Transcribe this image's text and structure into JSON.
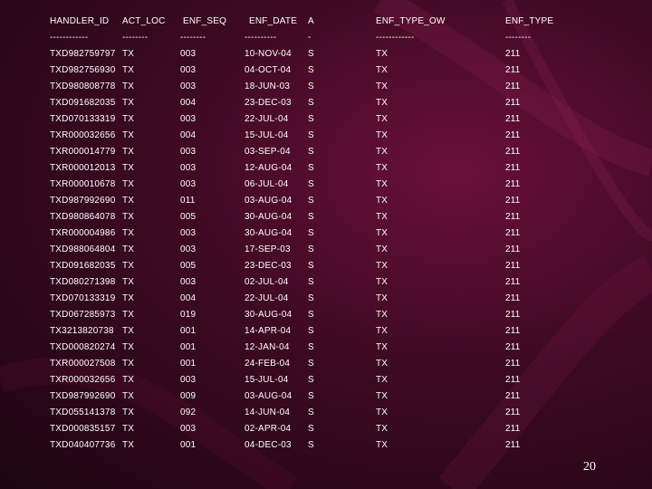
{
  "table": {
    "headers": [
      "HANDLER_ID",
      "ACT_LOC",
      "ENF_SEQ",
      "ENF_DATE",
      "A",
      "ENF_TYPE_OW",
      "ENF_TYPE"
    ],
    "separators": [
      "------------",
      "--------",
      "--------",
      "----------",
      "-",
      "------------",
      "--------"
    ],
    "rows": [
      [
        "TXD982759797",
        "TX",
        "003",
        "10-NOV-04",
        "S",
        "TX",
        "211"
      ],
      [
        "TXD982756930",
        "TX",
        "003",
        "04-OCT-04",
        "S",
        "TX",
        "211"
      ],
      [
        "TXD980808778",
        "TX",
        "003",
        "18-JUN-03",
        "S",
        "TX",
        "211"
      ],
      [
        "TXD091682035",
        "TX",
        "004",
        "23-DEC-03",
        "S",
        "TX",
        "211"
      ],
      [
        "TXD070133319",
        "TX",
        "003",
        "22-JUL-04",
        "S",
        "TX",
        "211"
      ],
      [
        "TXR000032656",
        "TX",
        "004",
        "15-JUL-04",
        "S",
        "TX",
        "211"
      ],
      [
        "TXR000014779",
        "TX",
        "003",
        "03-SEP-04",
        "S",
        "TX",
        "211"
      ],
      [
        "TXR000012013",
        "TX",
        "003",
        "12-AUG-04",
        "S",
        "TX",
        "211"
      ],
      [
        "TXR000010678",
        "TX",
        "003",
        "06-JUL-04",
        "S",
        "TX",
        "211"
      ],
      [
        "TXD987992690",
        "TX",
        "011",
        "03-AUG-04",
        "S",
        "TX",
        "211"
      ],
      [
        "TXD980864078",
        "TX",
        "005",
        "30-AUG-04",
        "S",
        "TX",
        "211"
      ],
      [
        "TXR000004986",
        "TX",
        "003",
        "30-AUG-04",
        "S",
        "TX",
        "211"
      ],
      [
        "TXD988064804",
        "TX",
        "003",
        "17-SEP-03",
        "S",
        "TX",
        "211"
      ],
      [
        "TXD091682035",
        "TX",
        "005",
        "23-DEC-03",
        "S",
        "TX",
        "211"
      ],
      [
        "TXD080271398",
        "TX",
        "003",
        "02-JUL-04",
        "S",
        "TX",
        "211"
      ],
      [
        "TXD070133319",
        "TX",
        "004",
        "22-JUL-04",
        "S",
        "TX",
        "211"
      ],
      [
        "TXD067285973",
        "TX",
        "019",
        "30-AUG-04",
        "S",
        "TX",
        "211"
      ],
      [
        "TX3213820738",
        "TX",
        "001",
        "14-APR-04",
        "S",
        "TX",
        "211"
      ],
      [
        "TXD000820274",
        "TX",
        "001",
        "12-JAN-04",
        "S",
        "TX",
        "211"
      ],
      [
        "TXR000027508",
        "TX",
        "001",
        "24-FEB-04",
        "S",
        "TX",
        "211"
      ],
      [
        "TXR000032656",
        "TX",
        "003",
        "15-JUL-04",
        "S",
        "TX",
        "211"
      ],
      [
        "TXD987992690",
        "TX",
        "009",
        "03-AUG-04",
        "S",
        "TX",
        "211"
      ],
      [
        "TXD055141378",
        "TX",
        "092",
        "14-JUN-04",
        "S",
        "TX",
        "211"
      ],
      [
        "TXD000835157",
        "TX",
        "003",
        "02-APR-04",
        "S",
        "TX",
        "211"
      ],
      [
        "TXD040407736",
        "TX",
        "001",
        "04-DEC-03",
        "S",
        "TX",
        "211"
      ]
    ]
  },
  "page_number": "20",
  "colors": {
    "background_dark": "#1e0512",
    "background_mid": "#3d0a22",
    "accent": "#6a1038",
    "text": "#ffffff"
  }
}
